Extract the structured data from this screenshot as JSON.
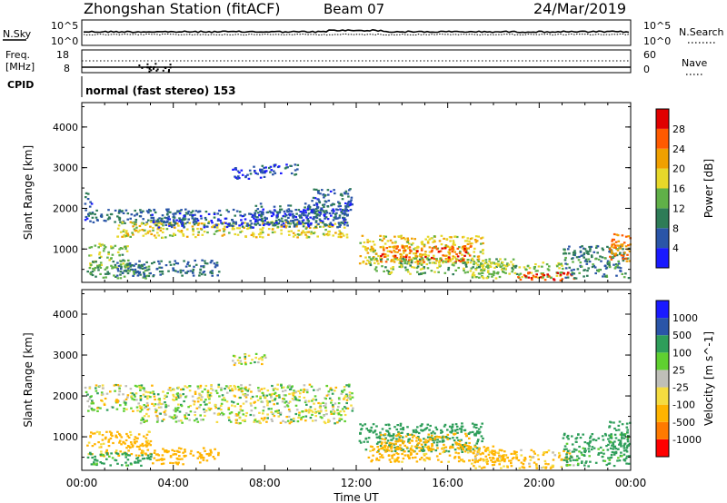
{
  "header": {
    "station": "Zhongshan Station (fitACF)",
    "beam": "Beam 07",
    "date": "24/Mar/2019"
  },
  "strip": {
    "nsky_label": "N.Sky",
    "nsky_ticks": [
      "10^5",
      "10^0"
    ],
    "nsearch_label": "N.Search",
    "nsearch_ticks": [
      "10^5",
      "10^0"
    ],
    "freq_label": "Freq.",
    "freq_unit": "[MHz]",
    "freq_ticks": [
      "18",
      "8"
    ],
    "nave_label": "Nave",
    "nave_ticks": [
      "60",
      "0"
    ],
    "cpid_label": "CPID",
    "cpid_value": "normal (fast stereo) 153"
  },
  "x_axis": {
    "label": "Time UT",
    "ticks": [
      "00:00",
      "04:00",
      "08:00",
      "12:00",
      "16:00",
      "20:00",
      "00:00"
    ]
  },
  "chart_data": [
    {
      "type": "heatmap",
      "name": "power",
      "xlabel": "Time UT",
      "ylabel": "Slant Range [km]",
      "xlim": [
        0,
        24
      ],
      "ylim": [
        180,
        4600
      ],
      "y_ticks": [
        "1000",
        "2000",
        "3000",
        "4000"
      ],
      "colorbar": {
        "label": "Power [dB]",
        "ticks": [
          "28",
          "24",
          "20",
          "16",
          "12",
          "8",
          "4"
        ],
        "levels": [
          {
            "max": 4,
            "color": "#1a1aff"
          },
          {
            "max": 8,
            "color": "#2a55a8"
          },
          {
            "max": 12,
            "color": "#2e7c57"
          },
          {
            "max": 16,
            "color": "#60b048"
          },
          {
            "max": 20,
            "color": "#e7d82a"
          },
          {
            "max": 24,
            "color": "#f0a000"
          },
          {
            "max": 28,
            "color": "#ff5a00"
          },
          {
            "max": 32,
            "color": "#e00000"
          }
        ]
      },
      "regions": [
        {
          "t": [
            0.1,
            0.4
          ],
          "r": [
            1700,
            2400
          ],
          "v": 6
        },
        {
          "t": [
            0.3,
            5.0
          ],
          "r": [
            1650,
            2000
          ],
          "v": 8
        },
        {
          "t": [
            1.5,
            11.6
          ],
          "r": [
            1300,
            1700
          ],
          "v": 18
        },
        {
          "t": [
            3.0,
            11.6
          ],
          "r": [
            1550,
            2000
          ],
          "v": 6
        },
        {
          "t": [
            7.5,
            11.6
          ],
          "r": [
            1600,
            2150
          ],
          "v": 6
        },
        {
          "t": [
            10.0,
            11.8
          ],
          "r": [
            1850,
            2500
          ],
          "v": 7
        },
        {
          "t": [
            0.2,
            2.0
          ],
          "r": [
            550,
            1150
          ],
          "v": 15
        },
        {
          "t": [
            0.2,
            3.0
          ],
          "r": [
            300,
            650
          ],
          "v": 12
        },
        {
          "t": [
            1.5,
            6.0
          ],
          "r": [
            350,
            750
          ],
          "v": 8
        },
        {
          "t": [
            6.5,
            8.0
          ],
          "r": [
            2750,
            3050
          ],
          "v": 5
        },
        {
          "t": [
            7.5,
            9.5
          ],
          "r": [
            2850,
            3100
          ],
          "v": 6
        },
        {
          "t": [
            12.1,
            17.5
          ],
          "r": [
            650,
            1350
          ],
          "v": 19
        },
        {
          "t": [
            13.0,
            17.0
          ],
          "r": [
            700,
            1100
          ],
          "v": 26
        },
        {
          "t": [
            12.5,
            19.0
          ],
          "r": [
            400,
            800
          ],
          "v": 14
        },
        {
          "t": [
            17.0,
            21.0
          ],
          "r": [
            300,
            700
          ],
          "v": 16
        },
        {
          "t": [
            19.0,
            21.5
          ],
          "r": [
            250,
            450
          ],
          "v": 28
        },
        {
          "t": [
            21.0,
            23.9
          ],
          "r": [
            300,
            1100
          ],
          "v": 10
        },
        {
          "t": [
            23.0,
            23.95
          ],
          "r": [
            700,
            1400
          ],
          "v": 24
        }
      ]
    },
    {
      "type": "heatmap",
      "name": "velocity",
      "xlabel": "Time UT",
      "ylabel": "Slant Range [km]",
      "xlim": [
        0,
        24
      ],
      "ylim": [
        180,
        4600
      ],
      "y_ticks": [
        "1000",
        "2000",
        "3000",
        "4000"
      ],
      "colorbar": {
        "label": "Velocity [m s^-1]",
        "ticks": [
          "1000",
          "500",
          "100",
          "25",
          "-25",
          "-100",
          "-500",
          "-1000"
        ],
        "levels": [
          {
            "max": -1000,
            "color": "#ff0000"
          },
          {
            "max": -500,
            "color": "#ff7a00"
          },
          {
            "max": -100,
            "color": "#ffb400"
          },
          {
            "max": -25,
            "color": "#f5dc40"
          },
          {
            "max": 25,
            "color": "#bfbfb8"
          },
          {
            "max": 100,
            "color": "#5fd030"
          },
          {
            "max": 500,
            "color": "#2e9e5a"
          },
          {
            "max": 1000,
            "color": "#2a55a8"
          },
          {
            "max": 1500,
            "color": "#1a1aff"
          }
        ]
      },
      "regions": [
        {
          "t": [
            0.1,
            11.8
          ],
          "r": [
            1650,
            2300
          ],
          "v": 0
        },
        {
          "t": [
            2.5,
            11.5
          ],
          "r": [
            1350,
            1650
          ],
          "v": 0
        },
        {
          "t": [
            0.2,
            3.0
          ],
          "r": [
            550,
            1150
          ],
          "v": -200
        },
        {
          "t": [
            0.2,
            3.0
          ],
          "r": [
            300,
            650
          ],
          "v": 200
        },
        {
          "t": [
            3.0,
            6.0
          ],
          "r": [
            350,
            750
          ],
          "v": -300
        },
        {
          "t": [
            6.5,
            8.0
          ],
          "r": [
            2750,
            3050
          ],
          "v": 0
        },
        {
          "t": [
            12.1,
            17.5
          ],
          "r": [
            650,
            1350
          ],
          "v": 300
        },
        {
          "t": [
            13.0,
            17.0
          ],
          "r": [
            700,
            1100
          ],
          "v": -300
        },
        {
          "t": [
            12.5,
            19.0
          ],
          "r": [
            400,
            800
          ],
          "v": -200
        },
        {
          "t": [
            17.0,
            21.5
          ],
          "r": [
            250,
            700
          ],
          "v": -150
        },
        {
          "t": [
            21.0,
            23.9
          ],
          "r": [
            300,
            1100
          ],
          "v": 200
        },
        {
          "t": [
            23.0,
            23.95
          ],
          "r": [
            700,
            1400
          ],
          "v": 300
        }
      ]
    }
  ]
}
